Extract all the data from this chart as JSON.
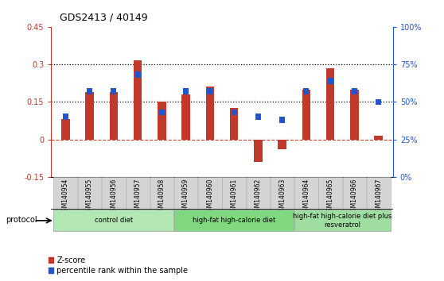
{
  "title": "GDS2413 / 40149",
  "samples": [
    "GSM140954",
    "GSM140955",
    "GSM140956",
    "GSM140957",
    "GSM140958",
    "GSM140959",
    "GSM140960",
    "GSM140961",
    "GSM140962",
    "GSM140963",
    "GSM140964",
    "GSM140965",
    "GSM140966",
    "GSM140967"
  ],
  "zscore": [
    0.08,
    0.19,
    0.19,
    0.315,
    0.15,
    0.18,
    0.21,
    0.125,
    -0.09,
    -0.04,
    0.2,
    0.285,
    0.2,
    0.015
  ],
  "percentile": [
    40,
    57,
    57,
    68,
    43,
    57,
    57,
    43,
    40,
    38,
    57,
    64,
    57,
    50
  ],
  "bar_color": "#c0392b",
  "blue_color": "#2255cc",
  "ylim_left": [
    -0.15,
    0.45
  ],
  "ylim_right": [
    0,
    100
  ],
  "yticks_left": [
    -0.15,
    0.0,
    0.15,
    0.3,
    0.45
  ],
  "yticks_right": [
    0,
    25,
    50,
    75,
    100
  ],
  "hline_dotted1": 0.15,
  "hline_dotted2": 0.3,
  "hline_zero": 0.0,
  "groups": [
    {
      "label": "control diet",
      "start": 0,
      "end": 4,
      "color": "#b2e6b2"
    },
    {
      "label": "high-fat high-calorie diet",
      "start": 5,
      "end": 9,
      "color": "#80d880"
    },
    {
      "label": "high-fat high-calorie diet plus\nresveratrol",
      "start": 10,
      "end": 13,
      "color": "#a0dda0"
    }
  ],
  "protocol_label": "protocol",
  "legend_zscore": "Z-score",
  "legend_percentile": "percentile rank within the sample",
  "bar_width": 0.35,
  "box_color": "#d4d4d4"
}
